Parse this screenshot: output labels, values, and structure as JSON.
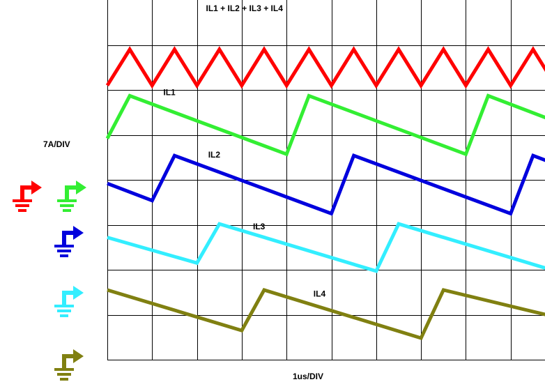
{
  "chart_data": {
    "type": "line",
    "title": "",
    "xlabel": "1us/DIV",
    "ylabel": "7A/DIV",
    "x_unit": "us",
    "x_per_div": 1,
    "y_unit": "A",
    "y_per_div": 7,
    "xlim": [
      0,
      10
    ],
    "grid": true,
    "grid_divisions": {
      "x": 10,
      "y": 8
    },
    "series": [
      {
        "name": "IL1 + IL2 + IL3 + IL4",
        "color": "#ff0000",
        "label_anchor": [
          2.2,
          7.75
        ],
        "points": [
          [
            0,
            6.1
          ],
          [
            0.5,
            6.9
          ],
          [
            1.0,
            6.1
          ],
          [
            1.5,
            6.9
          ],
          [
            2.0,
            6.1
          ],
          [
            2.5,
            6.9
          ],
          [
            3.0,
            6.1
          ],
          [
            3.5,
            6.9
          ],
          [
            4.0,
            6.1
          ],
          [
            4.5,
            6.9
          ],
          [
            5.0,
            6.1
          ],
          [
            5.5,
            6.9
          ],
          [
            6.0,
            6.1
          ],
          [
            6.5,
            6.9
          ],
          [
            7.0,
            6.1
          ],
          [
            7.5,
            6.9
          ],
          [
            8.0,
            6.1
          ],
          [
            8.5,
            6.9
          ],
          [
            9.0,
            6.1
          ],
          [
            9.5,
            6.9
          ],
          [
            10.0,
            6.1
          ]
        ]
      },
      {
        "name": "IL1",
        "color": "#33ee33",
        "label_anchor": [
          1.25,
          5.88
        ],
        "points": [
          [
            0,
            4.92
          ],
          [
            0.5,
            5.87
          ],
          [
            4.0,
            4.57
          ],
          [
            4.5,
            5.87
          ],
          [
            8.0,
            4.57
          ],
          [
            8.5,
            5.87
          ],
          [
            10.0,
            5.3
          ]
        ]
      },
      {
        "name": "IL2",
        "color": "#0000dd",
        "label_anchor": [
          2.25,
          4.5
        ],
        "points": [
          [
            0,
            3.92
          ],
          [
            1.0,
            3.54
          ],
          [
            1.5,
            4.54
          ],
          [
            5.0,
            3.25
          ],
          [
            5.5,
            4.54
          ],
          [
            9.0,
            3.25
          ],
          [
            9.5,
            4.54
          ],
          [
            10.0,
            4.35
          ]
        ]
      },
      {
        "name": "IL3",
        "color": "#33eeff",
        "label_anchor": [
          3.25,
          2.9
        ],
        "points": [
          [
            0,
            2.72
          ],
          [
            2.0,
            2.15
          ],
          [
            2.5,
            3.02
          ],
          [
            6.0,
            1.97
          ],
          [
            6.5,
            3.02
          ],
          [
            10.0,
            1.97
          ]
        ]
      },
      {
        "name": "IL4",
        "color": "#808011",
        "label_anchor": [
          4.6,
          1.4
        ],
        "points": [
          [
            0,
            1.55
          ],
          [
            3.0,
            0.65
          ],
          [
            3.5,
            1.55
          ],
          [
            7.0,
            0.48
          ],
          [
            7.5,
            1.55
          ],
          [
            10.0,
            0.95
          ]
        ]
      }
    ],
    "ground_markers": [
      {
        "color": "#ff0000"
      },
      {
        "color": "#33ee33"
      },
      {
        "color": "#0000dd"
      },
      {
        "color": "#33eeff"
      },
      {
        "color": "#808011"
      }
    ]
  }
}
